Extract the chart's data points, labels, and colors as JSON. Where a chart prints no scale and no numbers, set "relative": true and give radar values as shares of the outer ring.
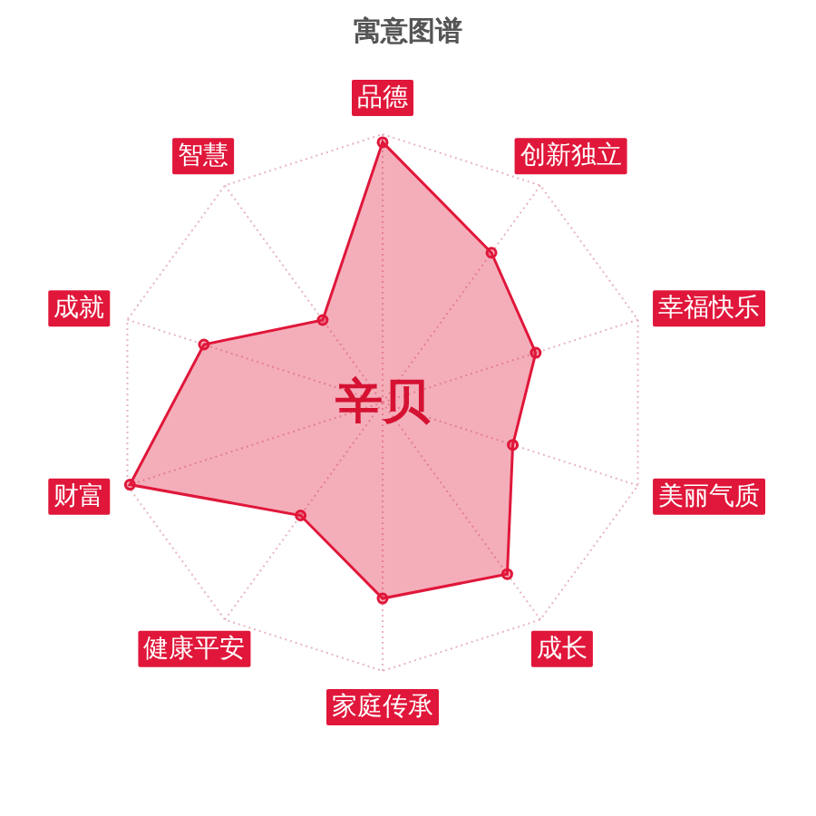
{
  "chart_data": {
    "type": "radar",
    "title": "寓意图谱",
    "categories": [
      "品德",
      "创新独立",
      "幸福快乐",
      "美丽气质",
      "成长",
      "家庭传承",
      "健康平安",
      "财富",
      "成就",
      "智慧"
    ],
    "series": [
      {
        "color": "#e0173a",
        "values": [
          0.97,
          0.69,
          0.6,
          0.51,
          0.79,
          0.73,
          0.52,
          0.99,
          0.7,
          0.38
        ]
      }
    ],
    "relative": true,
    "grid": true,
    "marker": "circle",
    "annotations": [
      "辛贝"
    ]
  }
}
